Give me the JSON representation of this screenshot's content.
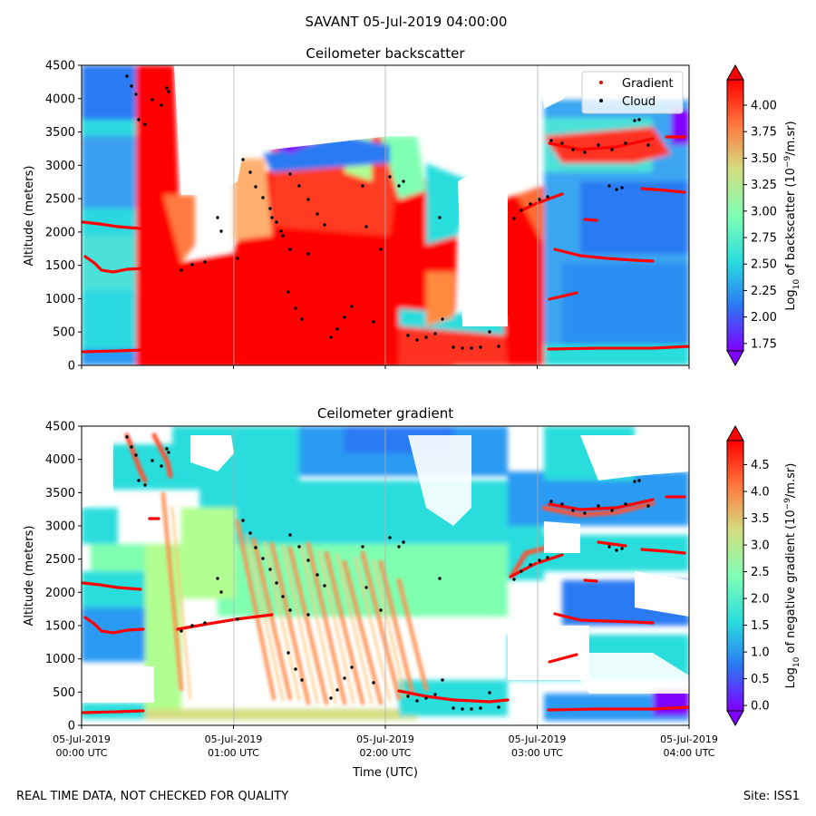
{
  "figure": {
    "title": "SAVANT 05-Jul-2019 04:00:00",
    "footer_left": "REAL TIME DATA, NOT CHECKED FOR QUALITY",
    "footer_right": "Site: ISS1"
  },
  "colors": {
    "colormap": [
      "#8000ff",
      "#2b7af3",
      "#2adddd",
      "#80ffb4",
      "#d4dd80",
      "#ff7a40",
      "#ff0000"
    ],
    "gradient_marker": "#ff0000",
    "cloud_marker": "#000000"
  },
  "chart_data": [
    {
      "type": "heatmap",
      "title": "Ceilometer backscatter",
      "ylabel": "Altitude (meters)",
      "xlabel": "",
      "xlim": [
        0,
        4
      ],
      "ylim": [
        0,
        4500
      ],
      "grid": "vertical",
      "y_ticks": [
        0,
        500,
        1000,
        1500,
        2000,
        2500,
        3000,
        3500,
        4000,
        4500
      ],
      "x_ticks": [
        0,
        1,
        2,
        3,
        4
      ],
      "x_tick_labels": [],
      "colorbar": {
        "label_prefix": "Log",
        "label_sub": "10",
        "label_mid": " of backscatter (10",
        "label_sup": "−9",
        "label_suffix": "/m.sr)",
        "ticks": [
          "1.75",
          "2.00",
          "2.25",
          "2.50",
          "2.75",
          "3.00",
          "3.25",
          "3.50",
          "3.75",
          "4.00"
        ],
        "tick_values": [
          1.75,
          2.0,
          2.25,
          2.5,
          2.75,
          3.0,
          3.25,
          3.5,
          3.75,
          4.0
        ],
        "range": [
          1.68,
          4.24
        ]
      },
      "legend": {
        "position": "top-right",
        "entries": [
          {
            "name": "Gradient",
            "color": "#ff0000"
          },
          {
            "name": "Cloud",
            "color": "#000000"
          }
        ]
      },
      "series": [
        {
          "name": "Gradient",
          "color": "#ff0000"
        },
        {
          "name": "Cloud",
          "color": "#000000"
        }
      ]
    },
    {
      "type": "heatmap",
      "title": "Ceilometer gradient",
      "ylabel": "Altitude (meters)",
      "xlabel": "Time (UTC)",
      "xlim": [
        0,
        4
      ],
      "ylim": [
        0,
        4500
      ],
      "grid": "vertical",
      "y_ticks": [
        0,
        500,
        1000,
        1500,
        2000,
        2500,
        3000,
        3500,
        4000,
        4500
      ],
      "x_ticks": [
        0,
        1,
        2,
        3,
        4
      ],
      "x_tick_labels": [
        [
          "05-Jul-2019",
          "00:00 UTC"
        ],
        [
          "05-Jul-2019",
          "01:00 UTC"
        ],
        [
          "05-Jul-2019",
          "02:00 UTC"
        ],
        [
          "05-Jul-2019",
          "03:00 UTC"
        ],
        [
          "05-Jul-2019",
          "04:00 UTC"
        ]
      ],
      "colorbar": {
        "label_prefix": "Log",
        "label_sub": "10",
        "label_mid": " of negative gradient (10",
        "label_sup": "−9",
        "label_suffix": "/m.sr)",
        "ticks": [
          "0.0",
          "0.5",
          "1.0",
          "1.5",
          "2.0",
          "2.5",
          "3.0",
          "3.5",
          "4.0",
          "4.5"
        ],
        "tick_values": [
          0.0,
          0.5,
          1.0,
          1.5,
          2.0,
          2.5,
          3.0,
          3.5,
          4.0,
          4.5
        ],
        "range": [
          -0.1,
          4.95
        ]
      },
      "legend": null,
      "series": [
        {
          "name": "Gradient",
          "color": "#ff0000"
        },
        {
          "name": "Cloud",
          "color": "#000000"
        }
      ]
    }
  ]
}
